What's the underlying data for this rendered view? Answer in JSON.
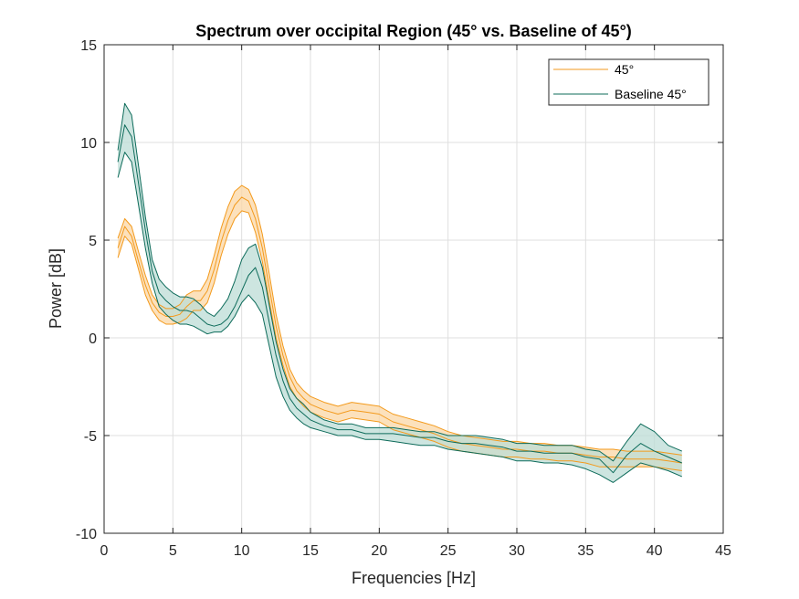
{
  "chart_data": {
    "type": "line",
    "title": "Spectrum over occipital Region (45° vs. Baseline of 45°)",
    "xlabel": "Frequencies [Hz]",
    "ylabel": "Power [dB]",
    "xlim": [
      0,
      45
    ],
    "ylim": [
      -10,
      15
    ],
    "xticks": [
      0,
      5,
      10,
      15,
      20,
      25,
      30,
      35,
      40,
      45
    ],
    "yticks": [
      -10,
      -5,
      0,
      5,
      10,
      15
    ],
    "grid": true,
    "legend_position": "top-right",
    "x": [
      1,
      1.5,
      2,
      2.5,
      3,
      3.5,
      4,
      4.5,
      5,
      5.5,
      6,
      6.5,
      7,
      7.5,
      8,
      8.5,
      9,
      9.5,
      10,
      10.5,
      11,
      11.5,
      12,
      12.5,
      13,
      13.5,
      14,
      14.5,
      15,
      16,
      17,
      18,
      19,
      20,
      21,
      22,
      23,
      24,
      25,
      26,
      27,
      28,
      29,
      30,
      31,
      32,
      33,
      34,
      35,
      36,
      37,
      38,
      39,
      40,
      41,
      42
    ],
    "series": [
      {
        "name": "45°",
        "color": "#f39a1c",
        "fill": "#fbd7a6",
        "mean": [
          4.6,
          5.7,
          5.2,
          3.9,
          2.7,
          1.8,
          1.3,
          1.1,
          1.1,
          1.2,
          1.6,
          1.9,
          1.9,
          2.4,
          3.5,
          4.9,
          6.0,
          6.8,
          7.2,
          7.0,
          6.1,
          4.6,
          2.6,
          0.6,
          -0.9,
          -2.0,
          -2.7,
          -3.1,
          -3.4,
          -3.7,
          -3.9,
          -3.7,
          -3.8,
          -3.9,
          -4.3,
          -4.5,
          -4.7,
          -4.9,
          -5.2,
          -5.4,
          -5.5,
          -5.6,
          -5.7,
          -5.7,
          -5.8,
          -5.8,
          -5.9,
          -5.9,
          -6.0,
          -6.1,
          -6.1,
          -6.2,
          -6.2,
          -6.2,
          -6.3,
          -6.4
        ],
        "upper": [
          5.1,
          6.1,
          5.7,
          4.4,
          3.2,
          2.2,
          1.7,
          1.5,
          1.5,
          1.7,
          2.2,
          2.4,
          2.4,
          3.0,
          4.2,
          5.6,
          6.7,
          7.5,
          7.8,
          7.6,
          6.8,
          5.3,
          3.3,
          1.2,
          -0.4,
          -1.6,
          -2.3,
          -2.7,
          -3.0,
          -3.3,
          -3.5,
          -3.3,
          -3.4,
          -3.5,
          -3.9,
          -4.1,
          -4.3,
          -4.5,
          -4.8,
          -5.0,
          -5.1,
          -5.2,
          -5.3,
          -5.3,
          -5.4,
          -5.4,
          -5.5,
          -5.5,
          -5.6,
          -5.7,
          -5.7,
          -5.8,
          -5.8,
          -5.8,
          -5.9,
          -6.0
        ],
        "lower": [
          4.1,
          5.2,
          4.8,
          3.5,
          2.2,
          1.4,
          0.9,
          0.7,
          0.7,
          0.8,
          1.0,
          1.4,
          1.4,
          1.8,
          2.8,
          4.2,
          5.3,
          6.1,
          6.5,
          6.4,
          5.4,
          3.9,
          1.9,
          0.0,
          -1.4,
          -2.5,
          -3.1,
          -3.5,
          -3.8,
          -4.1,
          -4.3,
          -4.1,
          -4.2,
          -4.3,
          -4.7,
          -4.9,
          -5.1,
          -5.3,
          -5.6,
          -5.8,
          -5.9,
          -6.0,
          -6.1,
          -6.1,
          -6.2,
          -6.2,
          -6.3,
          -6.3,
          -6.4,
          -6.6,
          -6.6,
          -6.6,
          -6.6,
          -6.6,
          -6.7,
          -6.8
        ]
      },
      {
        "name": "Baseline 45°",
        "color": "#0d6b5a",
        "fill": "#bcdcd5",
        "mean": [
          9.0,
          10.9,
          10.3,
          7.9,
          5.5,
          3.4,
          2.3,
          1.9,
          1.6,
          1.4,
          1.4,
          1.3,
          1.0,
          0.7,
          0.6,
          0.7,
          1.0,
          1.6,
          2.4,
          3.2,
          3.6,
          2.6,
          0.8,
          -0.9,
          -2.2,
          -3.1,
          -3.6,
          -3.9,
          -4.2,
          -4.5,
          -4.7,
          -4.7,
          -4.9,
          -4.9,
          -4.9,
          -5.0,
          -5.1,
          -5.1,
          -5.3,
          -5.4,
          -5.4,
          -5.5,
          -5.6,
          -5.8,
          -5.8,
          -5.9,
          -5.9,
          -5.9,
          -6.1,
          -6.2,
          -6.9,
          -6.0,
          -5.4,
          -5.8,
          -6.1,
          -6.4
        ],
        "upper": [
          9.6,
          12.0,
          11.4,
          8.8,
          6.2,
          4.0,
          3.0,
          2.6,
          2.3,
          2.1,
          2.1,
          2.0,
          1.7,
          1.3,
          1.1,
          1.5,
          2.0,
          2.9,
          4.0,
          4.6,
          4.8,
          3.6,
          1.7,
          -0.2,
          -1.6,
          -2.6,
          -3.1,
          -3.4,
          -3.8,
          -4.2,
          -4.4,
          -4.4,
          -4.6,
          -4.6,
          -4.6,
          -4.7,
          -4.8,
          -4.8,
          -5.0,
          -5.0,
          -5.0,
          -5.1,
          -5.2,
          -5.4,
          -5.4,
          -5.5,
          -5.5,
          -5.5,
          -5.7,
          -5.8,
          -6.3,
          -5.3,
          -4.4,
          -4.8,
          -5.5,
          -5.8
        ],
        "lower": [
          8.2,
          9.5,
          9.0,
          6.8,
          4.6,
          2.8,
          1.6,
          1.2,
          0.9,
          0.7,
          0.7,
          0.6,
          0.4,
          0.2,
          0.3,
          0.3,
          0.6,
          1.1,
          1.8,
          2.2,
          1.8,
          1.2,
          -0.4,
          -2.0,
          -3.0,
          -3.7,
          -4.1,
          -4.4,
          -4.6,
          -4.8,
          -5.0,
          -5.0,
          -5.2,
          -5.2,
          -5.3,
          -5.4,
          -5.5,
          -5.5,
          -5.7,
          -5.8,
          -5.9,
          -6.0,
          -6.1,
          -6.3,
          -6.3,
          -6.4,
          -6.4,
          -6.5,
          -6.7,
          -7.0,
          -7.4,
          -6.9,
          -6.4,
          -6.6,
          -6.8,
          -7.1
        ]
      }
    ]
  }
}
